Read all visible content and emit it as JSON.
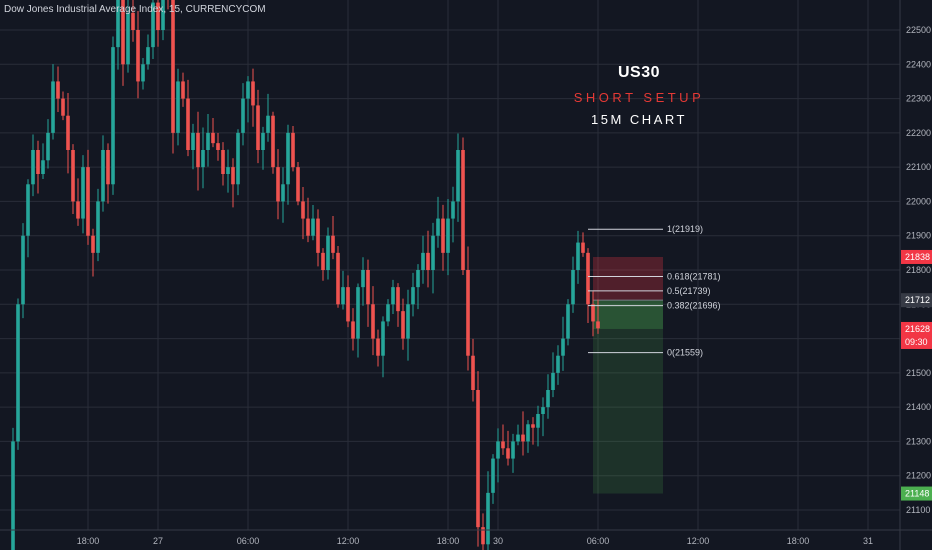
{
  "header": {
    "symbol_text": "Dow Jones Industrial Average Index, 15, CURRENCYCOM"
  },
  "overlay": {
    "title": "US30",
    "subtitle": "SHORT SETUP",
    "timeframe": "15M CHART"
  },
  "chart_data": {
    "type": "candlestick",
    "title": "US30",
    "symbol": "Dow Jones Industrial Average Index, 15, CURRENCYCOM",
    "ylim": [
      21050,
      22550
    ],
    "y_ticks": [
      21100,
      21200,
      21300,
      21400,
      21500,
      21600,
      21700,
      21800,
      21900,
      22000,
      22100,
      22200,
      22300,
      22400,
      22500
    ],
    "x_ticks": [
      "18:00",
      "27",
      "06:00",
      "12:00",
      "18:00",
      "30",
      "06:00",
      "12:00",
      "18:00",
      "31"
    ],
    "x_tick_index": [
      16,
      30,
      48,
      68,
      88,
      98,
      118,
      138,
      158,
      172
    ],
    "colors": {
      "bg": "#131722",
      "up": "#26a69a",
      "down": "#ef5350",
      "grid": "#2a2e39",
      "axis_text": "#b2b5be"
    },
    "close_series": [
      20950,
      21300,
      21700,
      21900,
      22050,
      22150,
      22080,
      22120,
      22200,
      22350,
      22300,
      22250,
      22150,
      22000,
      21950,
      22100,
      21900,
      21850,
      22000,
      22150,
      22050,
      22450,
      22650,
      22400,
      22550,
      22500,
      22350,
      22400,
      22450,
      22580,
      22500,
      22650,
      22600,
      22200,
      22350,
      22300,
      22150,
      22200,
      22100,
      22150,
      22200,
      22170,
      22150,
      22080,
      22100,
      22050,
      22200,
      22300,
      22350,
      22280,
      22150,
      22200,
      22250,
      22100,
      22000,
      22050,
      22200,
      22100,
      22000,
      21950,
      21900,
      21950,
      21850,
      21800,
      21900,
      21850,
      21700,
      21750,
      21650,
      21600,
      21750,
      21800,
      21700,
      21600,
      21550,
      21650,
      21700,
      21750,
      21680,
      21600,
      21700,
      21750,
      21800,
      21850,
      21800,
      21900,
      21950,
      21850,
      21950,
      22000,
      22150,
      21800,
      21550,
      21450,
      21050,
      21000,
      21150,
      21250,
      21300,
      21280,
      21250,
      21300,
      21320,
      21300,
      21350,
      21340,
      21380,
      21400,
      21450,
      21500,
      21550,
      21600,
      21700,
      21800,
      21880,
      21850,
      21700,
      21650,
      21630
    ],
    "candle_start_x": 0,
    "candle_spacing_px": 4.8,
    "fibonacci": {
      "levels": [
        {
          "ratio": "1",
          "price": 21919,
          "label": "1(21919)"
        },
        {
          "ratio": "0.618",
          "price": 21781,
          "label": "0.618(21781)"
        },
        {
          "ratio": "0.5",
          "price": 21739,
          "label": "0.5(21739)"
        },
        {
          "ratio": "0.382",
          "price": 21696,
          "label": "0.382(21696)"
        },
        {
          "ratio": "0",
          "price": 21559,
          "label": "0(21559)"
        }
      ],
      "x_start_index": 116,
      "x_end_index": 129
    },
    "position_tool": {
      "entry": 21712,
      "stop": 21838,
      "target": 21148,
      "current": 21628,
      "x_start_index": 117,
      "x_end_index": 131
    },
    "price_labels": [
      {
        "price": 21838,
        "text": "21838",
        "color": "#f23645"
      },
      {
        "price": 21712,
        "text": "21712",
        "color": "#363a45"
      },
      {
        "price": 21628,
        "text": "21628",
        "color": "#f23645"
      },
      {
        "price": 21148,
        "text": "21148",
        "color": "#4caf50"
      }
    ],
    "countdown": {
      "text": "09:30",
      "price": 21628
    }
  }
}
